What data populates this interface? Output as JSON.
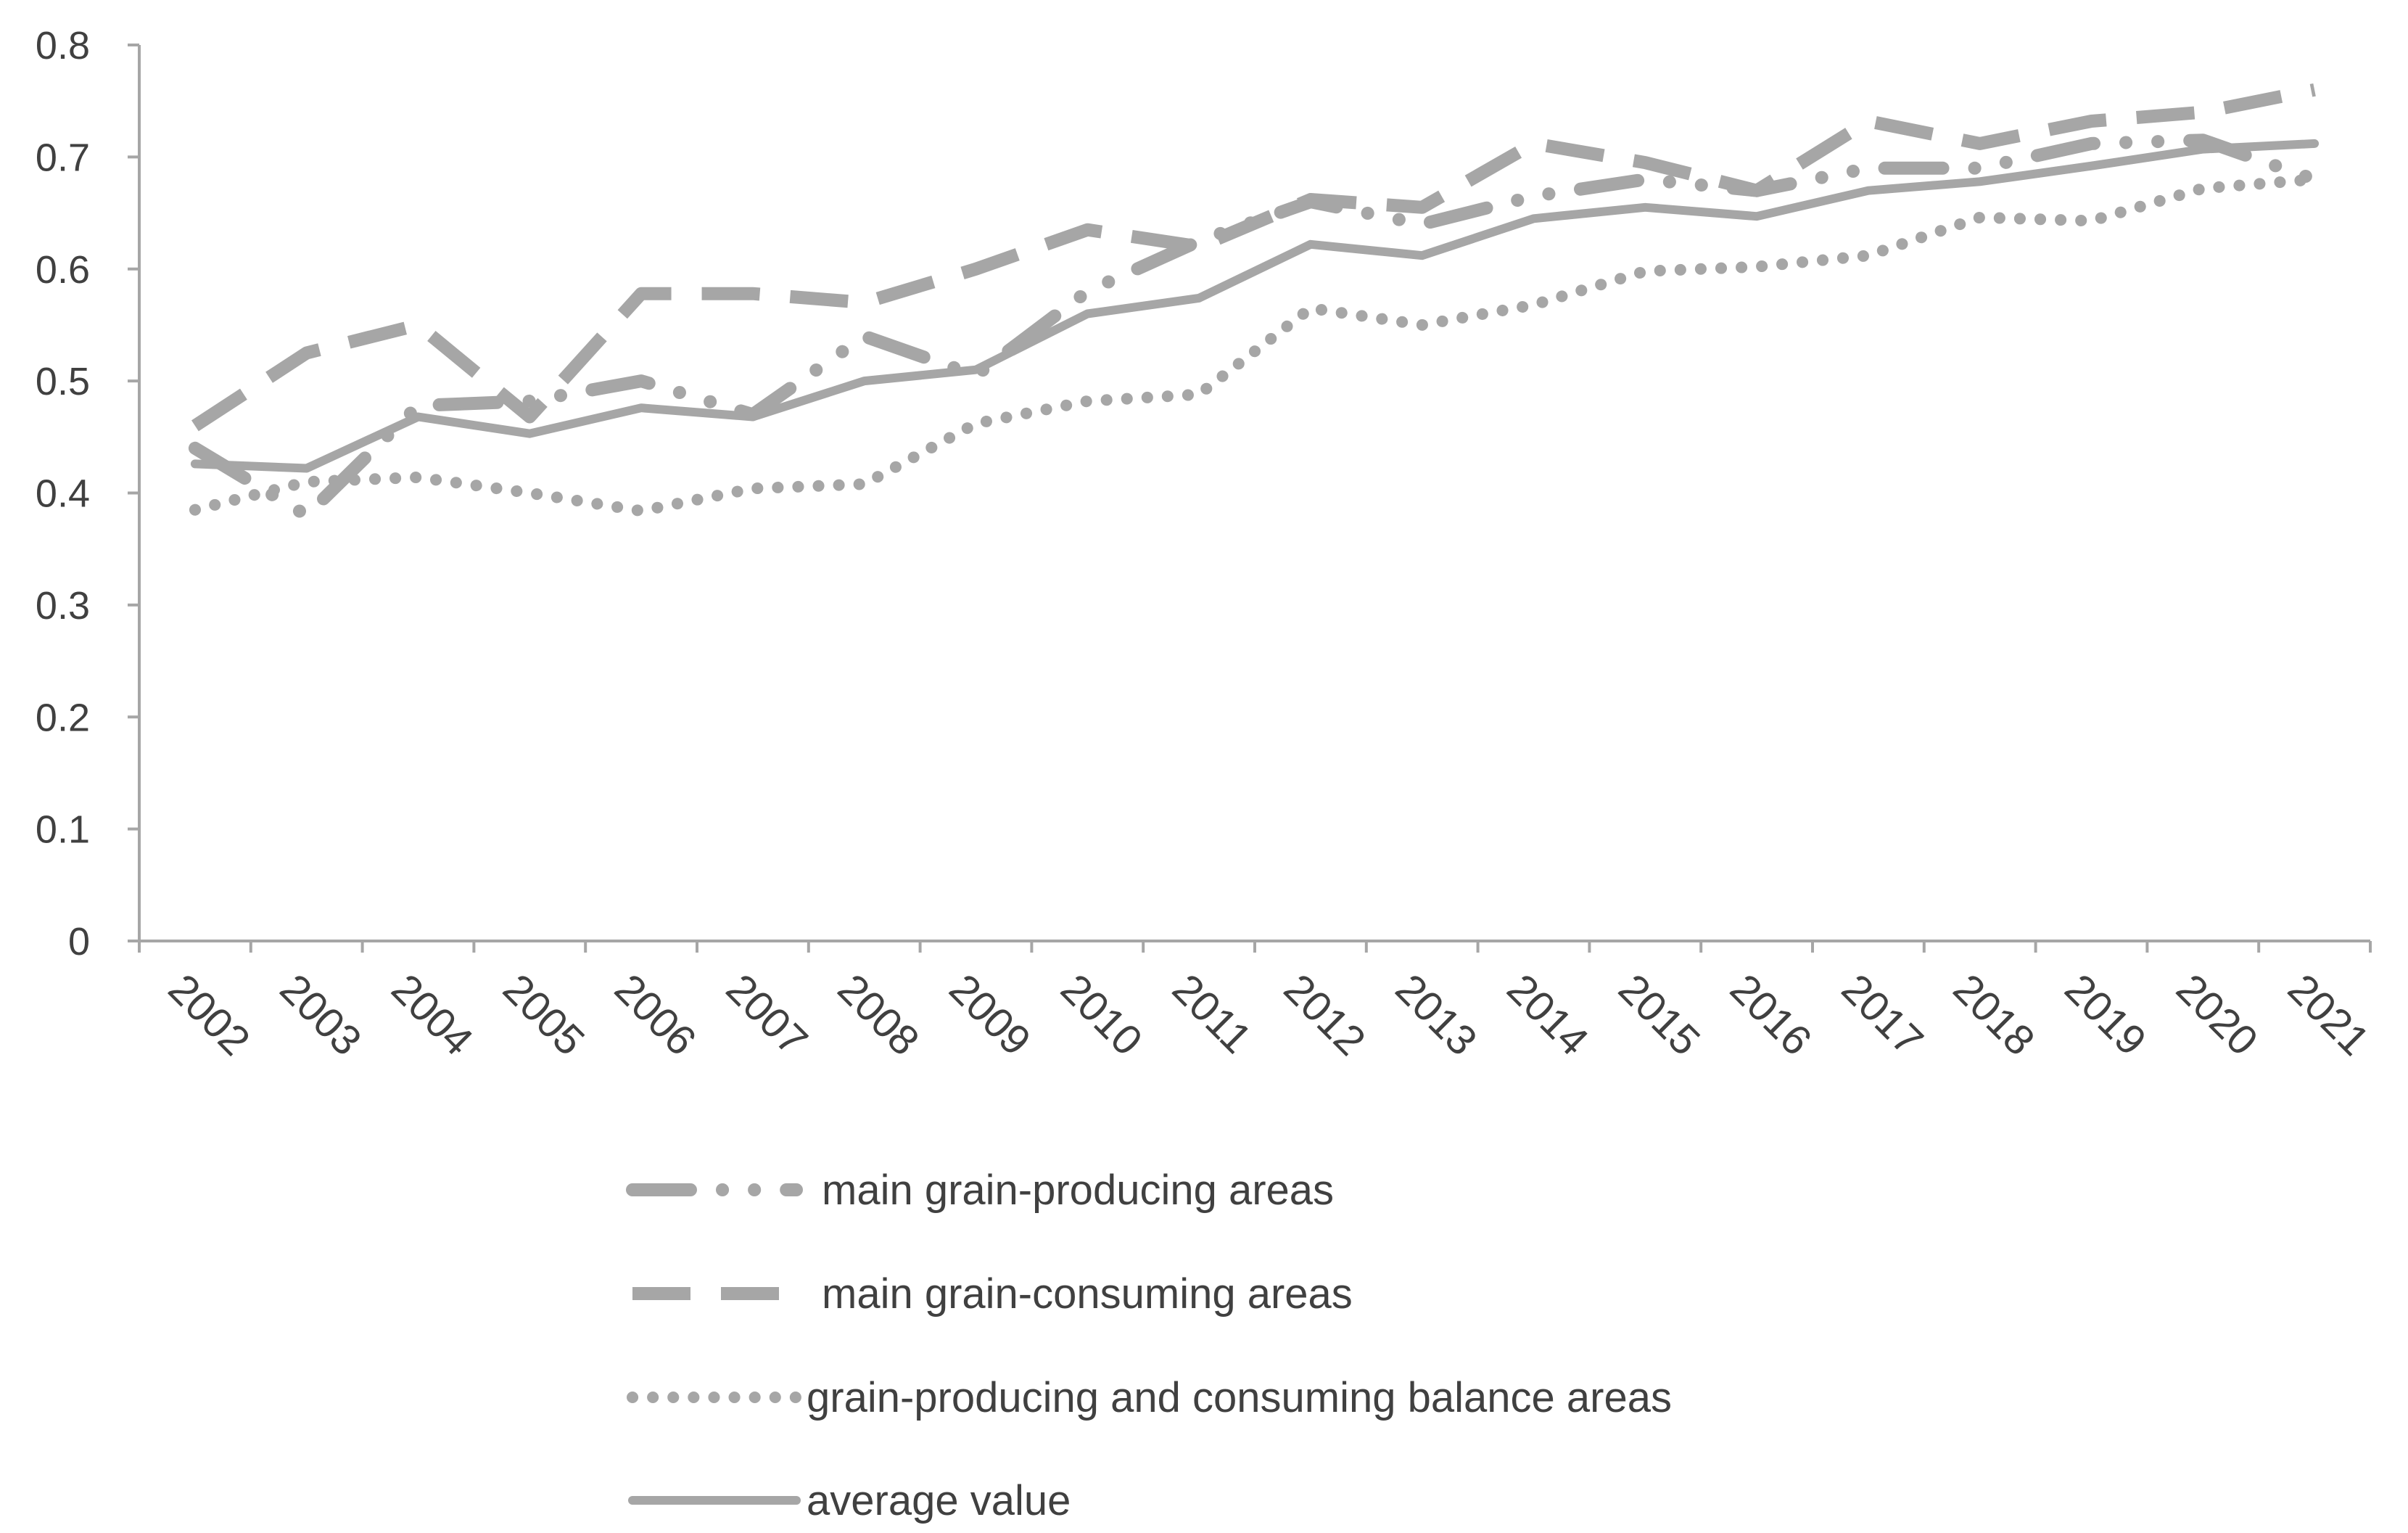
{
  "chart_data": {
    "type": "line",
    "title": "",
    "xlabel": "",
    "ylabel": "",
    "ylim": [
      0,
      0.8
    ],
    "yticks": [
      "0",
      "0.1",
      "0.2",
      "0.3",
      "0.4",
      "0.5",
      "0.6",
      "0.7",
      "0.8"
    ],
    "grid": false,
    "legend_position": "bottom",
    "categories": [
      "2002",
      "2003",
      "2004",
      "2005",
      "2006",
      "2007",
      "2008",
      "2009",
      "2010",
      "2011",
      "2012",
      "2013",
      "2014",
      "2015",
      "2016",
      "2017",
      "2018",
      "2019",
      "2020",
      "2021"
    ],
    "series": [
      {
        "name": "main grain-producing areas",
        "style": "dash-dot",
        "color": "#a6a6a6",
        "values": [
          0.44,
          0.38,
          0.478,
          0.482,
          0.5,
          0.47,
          0.54,
          0.505,
          0.58,
          0.625,
          0.66,
          0.64,
          0.665,
          0.68,
          0.67,
          0.69,
          0.69,
          0.712,
          0.715,
          0.68
        ]
      },
      {
        "name": "main grain-consuming areas",
        "style": "dash",
        "color": "#a6a6a6",
        "values": [
          0.46,
          0.525,
          0.55,
          0.468,
          0.578,
          0.578,
          0.57,
          0.6,
          0.635,
          0.62,
          0.662,
          0.655,
          0.712,
          0.695,
          0.67,
          0.732,
          0.712,
          0.732,
          0.74,
          0.76
        ]
      },
      {
        "name": "grain-producing and consuming balance areas",
        "style": "dot",
        "color": "#a6a6a6",
        "values": [
          0.385,
          0.41,
          0.414,
          0.4,
          0.384,
          0.404,
          0.408,
          0.462,
          0.482,
          0.488,
          0.565,
          0.55,
          0.568,
          0.598,
          0.602,
          0.612,
          0.646,
          0.643,
          0.672,
          0.68
        ]
      },
      {
        "name": "average value",
        "style": "solid",
        "color": "#a6a6a6",
        "values": [
          0.426,
          0.422,
          0.468,
          0.453,
          0.476,
          0.468,
          0.5,
          0.51,
          0.56,
          0.574,
          0.622,
          0.612,
          0.645,
          0.655,
          0.647,
          0.67,
          0.678,
          0.692,
          0.707,
          0.712
        ]
      }
    ]
  }
}
